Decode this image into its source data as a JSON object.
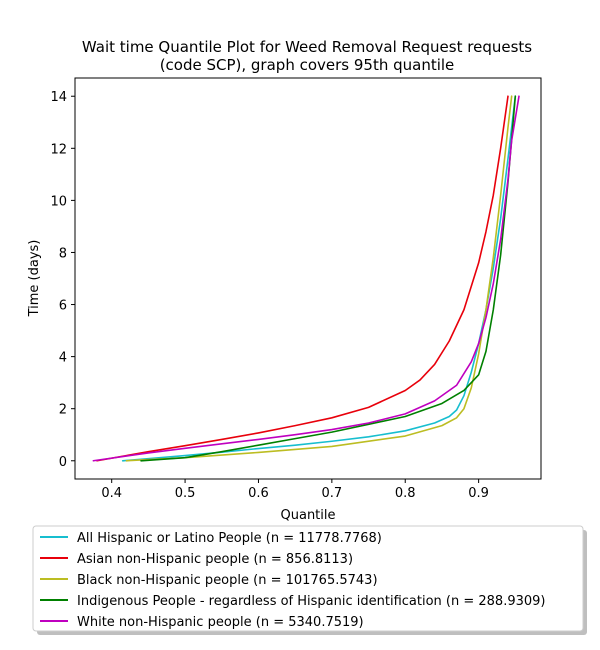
{
  "chart_data": {
    "type": "line",
    "title_lines": [
      "Wait time Quantile Plot for Weed Removal Request  requests",
      "(code SCP), graph covers 95th quantile"
    ],
    "xlabel": "Quantile",
    "ylabel": "Time (days)",
    "xlim": [
      0.35,
      0.985
    ],
    "ylim": [
      -0.7,
      14.7
    ],
    "xticks": [
      0.4,
      0.5,
      0.6,
      0.7,
      0.8,
      0.9
    ],
    "xtick_labels": [
      "0.4",
      "0.5",
      "0.6",
      "0.7",
      "0.8",
      "0.9"
    ],
    "yticks": [
      0,
      2,
      4,
      6,
      8,
      10,
      12,
      14
    ],
    "ytick_labels": [
      "0",
      "2",
      "4",
      "6",
      "8",
      "10",
      "12",
      "14"
    ],
    "grid": false,
    "legend_position": "below",
    "series": [
      {
        "name": "All Hispanic or Latino People (n = 11778.7768)",
        "color": "#17becf",
        "x": [
          0.415,
          0.45,
          0.5,
          0.55,
          0.6,
          0.65,
          0.7,
          0.75,
          0.8,
          0.84,
          0.86,
          0.87,
          0.88,
          0.89,
          0.9,
          0.91,
          0.92,
          0.93,
          0.94,
          0.95
        ],
        "y": [
          0.0,
          0.08,
          0.2,
          0.33,
          0.47,
          0.6,
          0.75,
          0.92,
          1.15,
          1.45,
          1.7,
          1.95,
          2.5,
          3.4,
          4.5,
          5.8,
          7.4,
          9.3,
          11.6,
          14.0
        ]
      },
      {
        "name": "Asian non-Hispanic people (n = 856.8113)",
        "color": "#e8000b",
        "x": [
          0.38,
          0.45,
          0.5,
          0.55,
          0.6,
          0.65,
          0.7,
          0.75,
          0.8,
          0.82,
          0.84,
          0.86,
          0.88,
          0.9,
          0.91,
          0.92,
          0.93,
          0.94
        ],
        "y": [
          0.0,
          0.35,
          0.58,
          0.82,
          1.07,
          1.35,
          1.65,
          2.05,
          2.7,
          3.1,
          3.7,
          4.6,
          5.8,
          7.6,
          8.8,
          10.2,
          12.0,
          14.0
        ]
      },
      {
        "name": "Black non-Hispanic people (n = 101765.5743)",
        "color": "#bcbd22",
        "x": [
          0.42,
          0.5,
          0.6,
          0.7,
          0.8,
          0.85,
          0.87,
          0.88,
          0.89,
          0.9,
          0.91,
          0.92,
          0.93,
          0.94,
          0.945
        ],
        "y": [
          0.0,
          0.12,
          0.32,
          0.55,
          0.95,
          1.35,
          1.65,
          2.0,
          2.8,
          4.1,
          5.8,
          7.8,
          10.2,
          12.8,
          14.0
        ]
      },
      {
        "name": "Indigenous People - regardless of Hispanic identification (n = 288.9309)",
        "color": "#008000",
        "x": [
          0.44,
          0.5,
          0.55,
          0.6,
          0.65,
          0.7,
          0.75,
          0.8,
          0.85,
          0.88,
          0.9,
          0.91,
          0.92,
          0.93,
          0.94,
          0.95
        ],
        "y": [
          0.0,
          0.12,
          0.35,
          0.6,
          0.85,
          1.1,
          1.4,
          1.7,
          2.2,
          2.7,
          3.3,
          4.2,
          5.8,
          7.9,
          10.7,
          14.0
        ]
      },
      {
        "name": "White non-Hispanic people (n = 5340.7519)",
        "color": "#bf00bf",
        "x": [
          0.375,
          0.45,
          0.5,
          0.55,
          0.6,
          0.65,
          0.7,
          0.75,
          0.8,
          0.84,
          0.87,
          0.89,
          0.9,
          0.91,
          0.92,
          0.93,
          0.94,
          0.945,
          0.955
        ],
        "y": [
          0.0,
          0.3,
          0.48,
          0.65,
          0.82,
          1.0,
          1.2,
          1.45,
          1.8,
          2.3,
          2.9,
          3.8,
          4.5,
          5.5,
          6.8,
          8.5,
          10.8,
          12.3,
          14.0
        ]
      }
    ]
  }
}
